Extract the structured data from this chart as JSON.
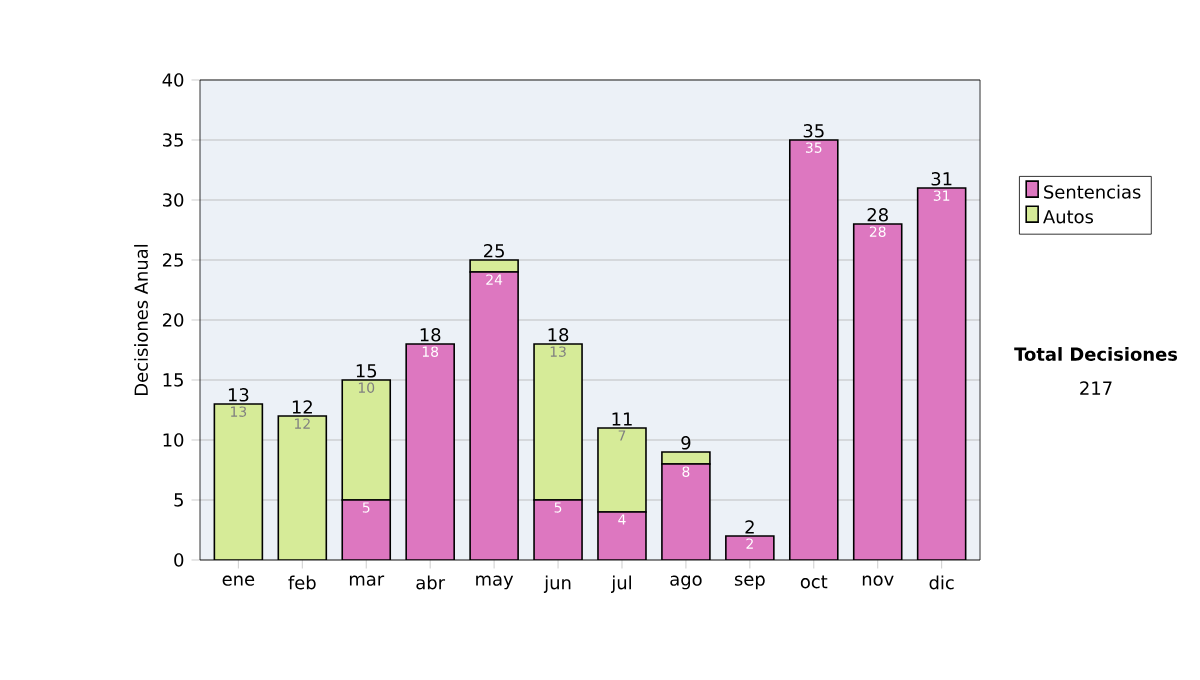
{
  "chart_data": {
    "type": "bar",
    "stacked": true,
    "ylabel": "Decisiones Anual",
    "categories": [
      "ene",
      "feb",
      "mar",
      "abr",
      "may",
      "jun",
      "jul",
      "ago",
      "sep",
      "oct",
      "nov",
      "dic"
    ],
    "series": [
      {
        "name": "Sentencias",
        "color": "#dd77c0",
        "values": [
          0,
          0,
          5,
          18,
          24,
          5,
          4,
          8,
          2,
          35,
          28,
          31
        ],
        "value_labels": [
          null,
          null,
          "5",
          "18",
          "24",
          "5",
          "4",
          "8",
          "2",
          "35",
          "28",
          "31"
        ]
      },
      {
        "name": "Autos",
        "color": "#d6eb98",
        "values": [
          13,
          12,
          10,
          0,
          1,
          13,
          7,
          1,
          0,
          0,
          0,
          0
        ],
        "value_labels": [
          "13",
          "12",
          "10",
          null,
          null,
          "13",
          "7",
          null,
          null,
          null,
          null,
          null
        ]
      }
    ],
    "totals": [
      "13",
      "12",
      "15",
      "18",
      "25",
      "18",
      "11",
      "9",
      "2",
      "35",
      "28",
      "31"
    ],
    "ylim": [
      0,
      40
    ],
    "yticks": [
      0,
      5,
      10,
      15,
      20,
      25,
      30,
      35,
      40
    ],
    "grid": "y",
    "legend": "right",
    "annotations": [
      "Total Decisiones",
      "217"
    ]
  }
}
